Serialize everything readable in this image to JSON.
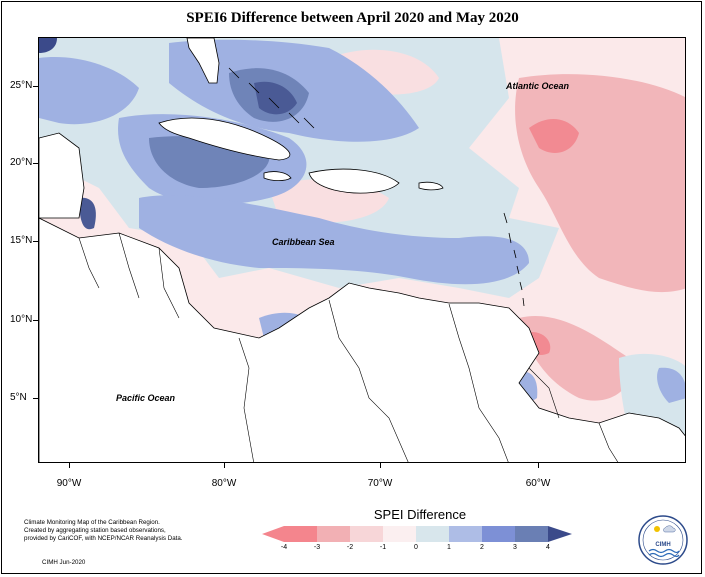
{
  "title": "SPEI6 Difference between April 2020 and May 2020",
  "map": {
    "lat_labels": [
      {
        "text": "25°N",
        "lat": 25
      },
      {
        "text": "20°N",
        "lat": 20
      },
      {
        "text": "15°N",
        "lat": 15
      },
      {
        "text": "10°N",
        "lat": 10
      },
      {
        "text": "5°N",
        "lat": 5
      }
    ],
    "lon_labels": [
      {
        "text": "90°W",
        "lon": -90
      },
      {
        "text": "80°W",
        "lon": -80
      },
      {
        "text": "70°W",
        "lon": -70
      },
      {
        "text": "60°W",
        "lon": -60
      }
    ],
    "extent": {
      "lon_min": -92,
      "lon_max": -51,
      "lat_min": 2,
      "lat_max": 28
    },
    "regions": {
      "atlantic": "Atlantic Ocean",
      "caribbean": "Caribbean Sea",
      "pacific": "Pacific Ocean"
    }
  },
  "legend": {
    "title": "SPEI Difference",
    "ticks": [
      "-4",
      "-3",
      "-2",
      "-1",
      "0",
      "1",
      "2",
      "3",
      "4"
    ],
    "colors": [
      "#f4858d",
      "#f2b0b4",
      "#f7d6d8",
      "#fbeff0",
      "#d8e6ec",
      "#aebde6",
      "#7d90d6",
      "#6a7fb4",
      "#3b4a8a"
    ]
  },
  "credit": {
    "line1": "Climate Monitoring Map of the Caribbean Region.",
    "line2": "Created by aggregating station based observations,",
    "line3": "provided by CariCOF, with NCEP/NCAR Reanalysis Data.",
    "date": "CIMH Jun-2020"
  },
  "logo": {
    "text": "CIMH",
    "icon": "cimh-logo-icon"
  }
}
